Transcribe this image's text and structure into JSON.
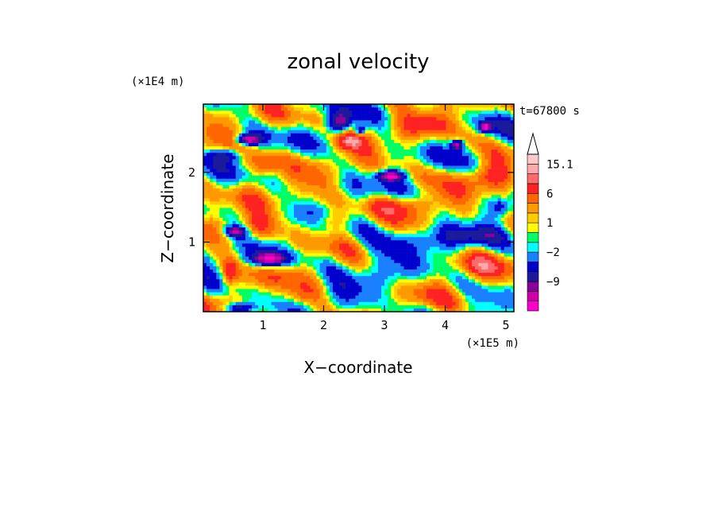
{
  "chart_data": {
    "type": "heatmap",
    "title": "zonal velocity",
    "xlabel": "X−coordinate",
    "ylabel": "Z−coordinate",
    "x_unit": "(×1E5 m)",
    "y_unit": "(×1E4 m)",
    "time_label": "t=67800 s",
    "xlim": [
      0.02,
      5.13
    ],
    "ylim": [
      0.0,
      2.98
    ],
    "x_ticks": [
      {
        "value": 1,
        "label": "1"
      },
      {
        "value": 2,
        "label": "2"
      },
      {
        "value": 3,
        "label": "3"
      },
      {
        "value": 4,
        "label": "4"
      },
      {
        "value": 5,
        "label": "5"
      }
    ],
    "y_ticks": [
      {
        "value": 1,
        "label": "1"
      },
      {
        "value": 2,
        "label": "2"
      }
    ],
    "colorbar": {
      "colors": [
        "#ff00cc",
        "#cc00aa",
        "#880099",
        "#1a1a9a",
        "#0000cc",
        "#1a80ff",
        "#00ffff",
        "#00ff66",
        "#ffff00",
        "#ffcc00",
        "#ff9900",
        "#ff6600",
        "#ff2222",
        "#ff6a6a",
        "#ffaaaa",
        "#ffc8c8"
      ],
      "labels": [
        {
          "value": -9,
          "label": "−9"
        },
        {
          "value": -2,
          "label": "−2"
        },
        {
          "value": 1,
          "label": "1"
        },
        {
          "value": 6,
          "label": "6"
        },
        {
          "value": 15.1,
          "label": "15.1"
        }
      ],
      "extend": "max"
    },
    "field": {
      "features": [
        {
          "x": 0.75,
          "z": 2.47,
          "sx": 0.2,
          "sz": 0.08,
          "a": -13
        },
        {
          "x": 0.4,
          "z": 2.25,
          "sx": 0.28,
          "sz": 0.1,
          "a": -8
        },
        {
          "x": 0.55,
          "z": 1.15,
          "sx": 0.18,
          "sz": 0.08,
          "a": -12
        },
        {
          "x": 1.1,
          "z": 0.75,
          "sx": 0.3,
          "sz": 0.1,
          "a": -12
        },
        {
          "x": 0.6,
          "z": 0.05,
          "sx": 0.25,
          "sz": 0.08,
          "a": -12
        },
        {
          "x": 2.25,
          "z": 2.7,
          "sx": 0.2,
          "sz": 0.15,
          "a": -12
        },
        {
          "x": 3.1,
          "z": 1.95,
          "sx": 0.22,
          "sz": 0.07,
          "a": -13
        },
        {
          "x": 4.2,
          "z": 2.4,
          "sx": 0.1,
          "sz": 0.07,
          "a": -12
        },
        {
          "x": 4.65,
          "z": 2.65,
          "sx": 0.1,
          "sz": 0.07,
          "a": -12
        },
        {
          "x": 2.6,
          "z": 2.6,
          "sx": 0.1,
          "sz": 0.08,
          "a": -10
        },
        {
          "x": 4.9,
          "z": 1.5,
          "sx": 0.15,
          "sz": 0.12,
          "a": -5
        },
        {
          "x": 2.4,
          "z": 2.45,
          "sx": 0.25,
          "sz": 0.15,
          "a": 8
        },
        {
          "x": 1.0,
          "z": 2.1,
          "sx": 0.25,
          "sz": 0.2,
          "a": 7
        },
        {
          "x": 0.9,
          "z": 1.2,
          "sx": 0.3,
          "sz": 0.2,
          "a": 6
        },
        {
          "x": 0.45,
          "z": 0.55,
          "sx": 0.12,
          "sz": 0.2,
          "a": 6
        },
        {
          "x": 2.1,
          "z": 1.3,
          "sx": 0.35,
          "sz": 0.15,
          "a": 5
        },
        {
          "x": 3.35,
          "z": 1.55,
          "sx": 0.6,
          "sz": 0.15,
          "a": 5
        },
        {
          "x": 4.7,
          "z": 1.95,
          "sx": 0.35,
          "sz": 0.2,
          "a": 6
        },
        {
          "x": 3.7,
          "z": 2.7,
          "sx": 0.4,
          "sz": 0.15,
          "a": 5
        },
        {
          "x": 1.6,
          "z": 0.2,
          "sx": 0.3,
          "sz": 0.15,
          "a": 4
        },
        {
          "x": 3.2,
          "z": 1.0,
          "sx": 1.0,
          "sz": 0.25,
          "a": -4
        },
        {
          "x": 4.5,
          "z": 0.6,
          "sx": 0.5,
          "sz": 0.2,
          "a": 3
        },
        {
          "x": 4.5,
          "z": 1.1,
          "sx": 0.5,
          "sz": 0.15,
          "a": -5
        },
        {
          "x": 2.8,
          "z": 0.4,
          "sx": 0.6,
          "sz": 0.2,
          "a": -3
        }
      ],
      "waves": [
        {
          "kx": 3.2,
          "kz": 7.5,
          "amp": 3.0,
          "phase": 0.4
        },
        {
          "kx": 2.1,
          "kz": -5.0,
          "amp": 2.2,
          "phase": 1.3
        },
        {
          "kx": 6.0,
          "kz": 4.0,
          "amp": 1.6,
          "phase": 2.1
        },
        {
          "kx": 1.2,
          "kz": 11.0,
          "amp": 1.4,
          "phase": 0.9
        },
        {
          "kx": 9.0,
          "kz": 2.5,
          "amp": 1.0,
          "phase": 2.7
        }
      ],
      "base": 0.5
    }
  }
}
